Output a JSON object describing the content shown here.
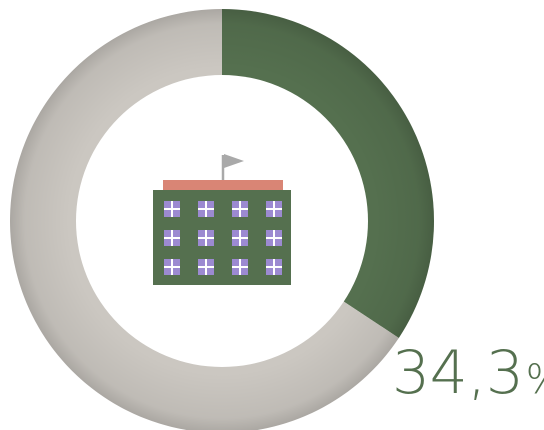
{
  "chart_data": {
    "type": "pie",
    "donut": true,
    "slices": [
      {
        "label": "",
        "value": 34.3,
        "color": "#55704f"
      },
      {
        "label": "",
        "value": 65.7,
        "color": "#cbc7c1"
      }
    ],
    "value_label": {
      "number": "34,3",
      "unit": "%"
    },
    "center_icon": "school-building-icon"
  },
  "colors": {
    "highlight": "#55704f",
    "rest": "#cbc7c1",
    "label": "#55704f",
    "building_body": "#55704f",
    "building_roof": "#d98575",
    "window": "#9c8ad1",
    "flag": "#a9a9a9"
  }
}
